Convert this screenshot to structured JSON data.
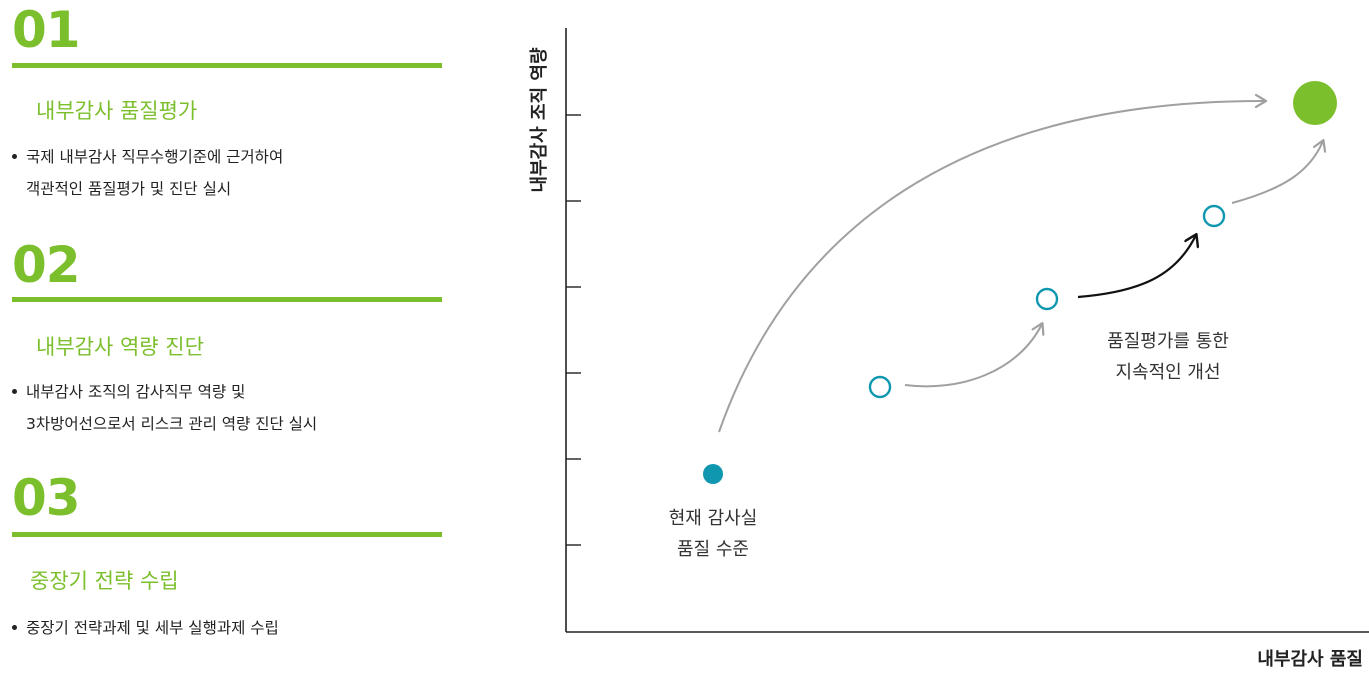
{
  "sections": [
    {
      "number": "01",
      "title": "내부감사 품질평가",
      "bullet_lines": [
        "국제 내부감사 직무수행기준에 근거하여",
        "객관적인 품질평가 및 진단 실시"
      ]
    },
    {
      "number": "02",
      "title": "내부감사 역량 진단",
      "bullet_lines": [
        "내부감사 조직의 감사직무 역량 및",
        "3차방어선으로서 리스크 관리 역량 진단 실시"
      ]
    },
    {
      "number": "03",
      "title": "중장기 전략 수립",
      "bullet_lines": [
        "중장기 전략과제 및 세부 실행과제 수립"
      ]
    }
  ],
  "diagram": {
    "y_axis_label": "내부감사 조직 역량",
    "x_axis_label": "내부감사 품질",
    "current_label_lines": [
      "현재 감사실",
      "품질 수준"
    ],
    "improvement_label_lines": [
      "품질평가를 통한",
      "지속적인 개선"
    ],
    "colors": {
      "accent_green": "#7cbf2d",
      "teal": "#0f97b0",
      "arrow_gray": "#a0a0a0",
      "arrow_black": "#111111",
      "axis": "#222222"
    }
  }
}
